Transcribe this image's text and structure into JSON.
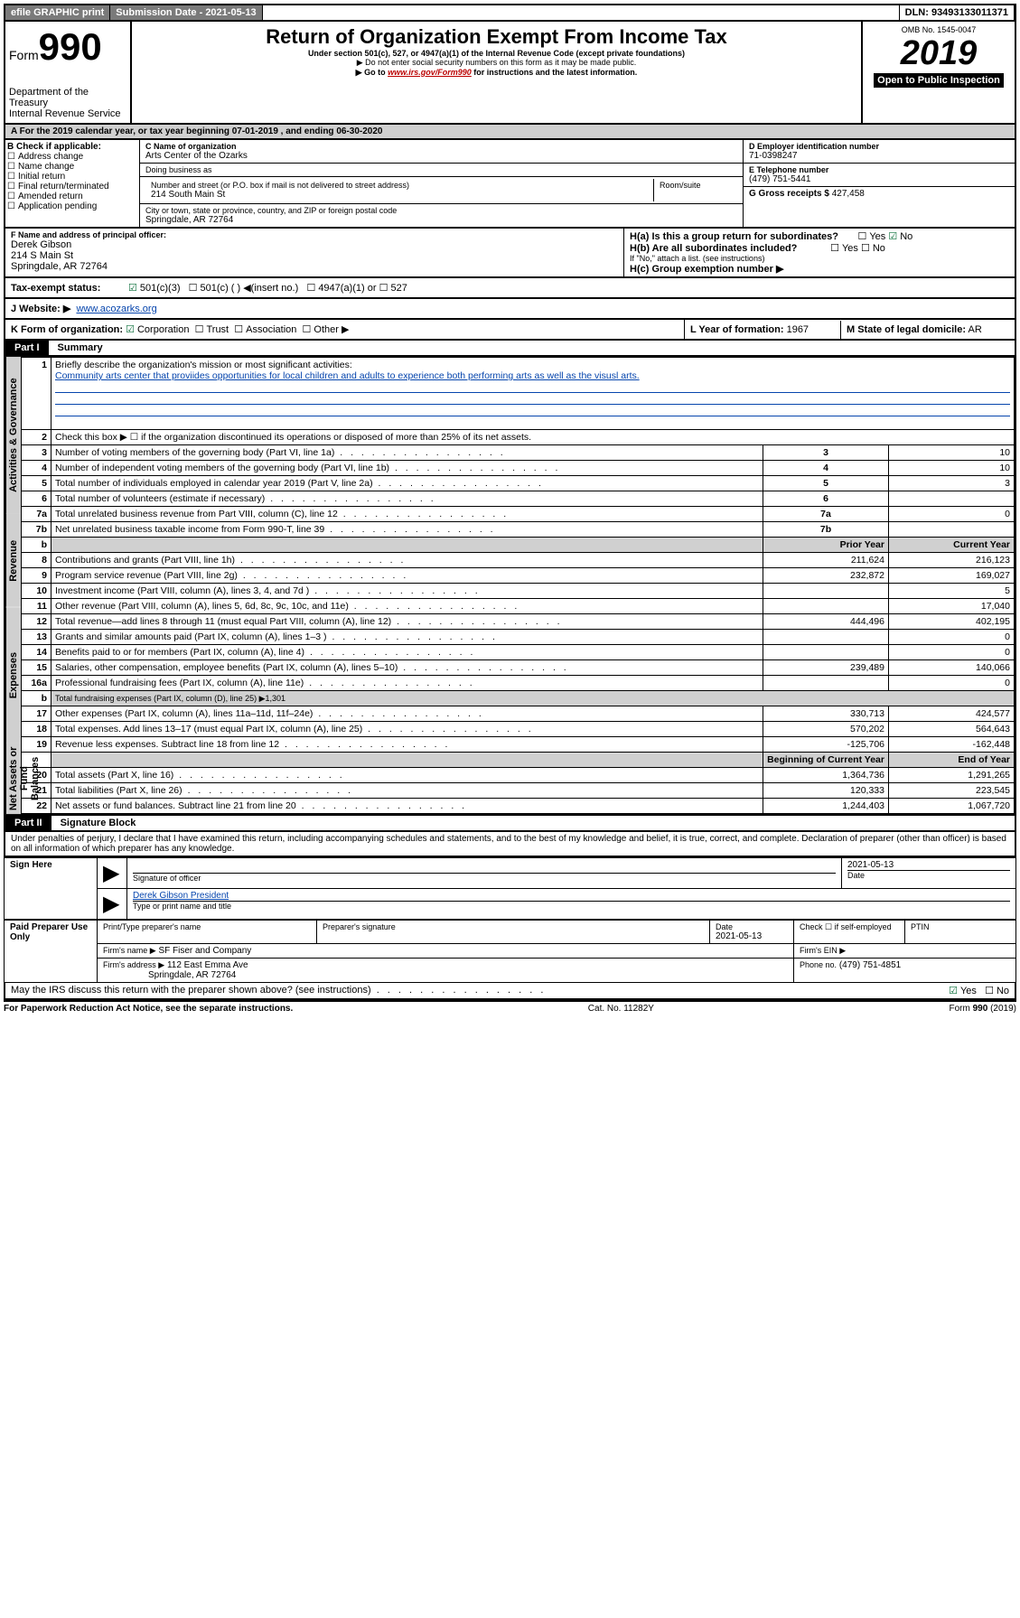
{
  "topbar": {
    "efile": "efile GRAPHIC print",
    "subdate_label": "Submission Date - 2021-05-13",
    "dln": "DLN: 93493133011371"
  },
  "header": {
    "form_label": "Form",
    "form_no": "990",
    "title": "Return of Organization Exempt From Income Tax",
    "sub1": "Under section 501(c), 527, or 4947(a)(1) of the Internal Revenue Code (except private foundations)",
    "sub2": "▶ Do not enter social security numbers on this form as it may be made public.",
    "sub3": "▶ Go to ",
    "sub3_link": "www.irs.gov/Form990",
    "sub3_tail": " for instructions and the latest information.",
    "dept": "Department of the Treasury",
    "irs": "Internal Revenue Service",
    "omb": "OMB No. 1545-0047",
    "year": "2019",
    "open": "Open to Public Inspection"
  },
  "rowA": "A For the 2019 calendar year, or tax year beginning 07-01-2019    , and ending 06-30-2020",
  "boxB": {
    "title": "B Check if applicable:",
    "items": [
      "Address change",
      "Name change",
      "Initial return",
      "Final return/terminated",
      "Amended return",
      "Application pending"
    ]
  },
  "boxC": {
    "label": "C Name of organization",
    "name": "Arts Center of the Ozarks",
    "dba": "Doing business as",
    "addr_label": "Number and street (or P.O. box if mail is not delivered to street address)",
    "addr": "214 South Main St",
    "room": "Room/suite",
    "city_label": "City or town, state or province, country, and ZIP or foreign postal code",
    "city": "Springdale, AR  72764"
  },
  "boxD": {
    "label": "D Employer identification number",
    "val": "71-0398247"
  },
  "boxE": {
    "label": "E Telephone number",
    "val": "(479) 751-5441"
  },
  "boxG": {
    "label": "G Gross receipts $",
    "val": "427,458"
  },
  "boxF": {
    "label": "F  Name and address of principal officer:",
    "name": "Derek Gibson",
    "addr1": "214 S Main St",
    "addr2": "Springdale, AR  72764"
  },
  "boxH": {
    "a": "H(a)  Is this a group return for subordinates?",
    "b": "H(b)  Are all subordinates included?",
    "note": "If \"No,\" attach a list. (see instructions)",
    "c": "H(c)  Group exemption number ▶",
    "yes": "Yes",
    "no": "No"
  },
  "boxI": {
    "label": "Tax-exempt status:",
    "c3": "501(c)(3)",
    "c": "501(c) (  ) ◀(insert no.)",
    "a1": "4947(a)(1) or",
    "527": "527"
  },
  "boxJ": {
    "label": "J   Website: ▶",
    "val": "www.acozarks.org"
  },
  "boxK": {
    "label": "K Form of organization:",
    "corp": "Corporation",
    "trust": "Trust",
    "assoc": "Association",
    "other": "Other ▶"
  },
  "boxL": {
    "label": "L Year of formation:",
    "val": "1967"
  },
  "boxM": {
    "label": "M State of legal domicile:",
    "val": "AR"
  },
  "part1": {
    "hdr": "Part I",
    "title": "Summary"
  },
  "summary": {
    "q1": "Briefly describe the organization's mission or most significant activities:",
    "q1_ans": "Community arts center that proviides opportunities for local children and adults to experience both performing arts as well as the visusl arts.",
    "q2": "Check this box ▶ ☐  if the organization discontinued its operations or disposed of more than 25% of its net assets.",
    "rows_ag": [
      {
        "n": "3",
        "t": "Number of voting members of the governing body (Part VI, line 1a)",
        "v": "10"
      },
      {
        "n": "4",
        "t": "Number of independent voting members of the governing body (Part VI, line 1b)",
        "v": "10"
      },
      {
        "n": "5",
        "t": "Total number of individuals employed in calendar year 2019 (Part V, line 2a)",
        "v": "3"
      },
      {
        "n": "6",
        "t": "Total number of volunteers (estimate if necessary)",
        "v": ""
      },
      {
        "n": "7a",
        "t": "Total unrelated business revenue from Part VIII, column (C), line 12",
        "v": "0"
      },
      {
        "n": "7b",
        "t": "Net unrelated business taxable income from Form 990-T, line 39",
        "v": ""
      }
    ],
    "col_prior": "Prior Year",
    "col_curr": "Current Year",
    "rev": [
      {
        "n": "8",
        "t": "Contributions and grants (Part VIII, line 1h)",
        "p": "211,624",
        "c": "216,123"
      },
      {
        "n": "9",
        "t": "Program service revenue (Part VIII, line 2g)",
        "p": "232,872",
        "c": "169,027"
      },
      {
        "n": "10",
        "t": "Investment income (Part VIII, column (A), lines 3, 4, and 7d )",
        "p": "",
        "c": "5"
      },
      {
        "n": "11",
        "t": "Other revenue (Part VIII, column (A), lines 5, 6d, 8c, 9c, 10c, and 11e)",
        "p": "",
        "c": "17,040"
      },
      {
        "n": "12",
        "t": "Total revenue—add lines 8 through 11 (must equal Part VIII, column (A), line 12)",
        "p": "444,496",
        "c": "402,195"
      }
    ],
    "exp": [
      {
        "n": "13",
        "t": "Grants and similar amounts paid (Part IX, column (A), lines 1–3 )",
        "p": "",
        "c": "0"
      },
      {
        "n": "14",
        "t": "Benefits paid to or for members (Part IX, column (A), line 4)",
        "p": "",
        "c": "0"
      },
      {
        "n": "15",
        "t": "Salaries, other compensation, employee benefits (Part IX, column (A), lines 5–10)",
        "p": "239,489",
        "c": "140,066"
      },
      {
        "n": "16a",
        "t": "Professional fundraising fees (Part IX, column (A), line 11e)",
        "p": "",
        "c": "0"
      },
      {
        "n": "b",
        "t": "Total fundraising expenses (Part IX, column (D), line 25) ▶1,301",
        "p": "—",
        "c": "—"
      },
      {
        "n": "17",
        "t": "Other expenses (Part IX, column (A), lines 11a–11d, 11f–24e)",
        "p": "330,713",
        "c": "424,577"
      },
      {
        "n": "18",
        "t": "Total expenses. Add lines 13–17 (must equal Part IX, column (A), line 25)",
        "p": "570,202",
        "c": "564,643"
      },
      {
        "n": "19",
        "t": "Revenue less expenses. Subtract line 18 from line 12",
        "p": "-125,706",
        "c": "-162,448"
      }
    ],
    "col_boy": "Beginning of Current Year",
    "col_eoy": "End of Year",
    "na": [
      {
        "n": "20",
        "t": "Total assets (Part X, line 16)",
        "p": "1,364,736",
        "c": "1,291,265"
      },
      {
        "n": "21",
        "t": "Total liabilities (Part X, line 26)",
        "p": "120,333",
        "c": "223,545"
      },
      {
        "n": "22",
        "t": "Net assets or fund balances. Subtract line 21 from line 20",
        "p": "1,244,403",
        "c": "1,067,720"
      }
    ],
    "vtabs": {
      "ag": "Activities & Governance",
      "rev": "Revenue",
      "exp": "Expenses",
      "na": "Net Assets or Fund Balances"
    }
  },
  "part2": {
    "hdr": "Part II",
    "title": "Signature Block"
  },
  "sig": {
    "perjury": "Under penalties of perjury, I declare that I have examined this return, including accompanying schedules and statements, and to the best of my knowledge and belief, it is true, correct, and complete. Declaration of preparer (other than officer) is based on all information of which preparer has any knowledge.",
    "sign_here": "Sign Here",
    "sig_officer": "Signature of officer",
    "date": "2021-05-13",
    "date_label": "Date",
    "name_title": "Derek Gibson President",
    "name_title_label": "Type or print name and title",
    "paid": "Paid Preparer Use Only",
    "prep_name_label": "Print/Type preparer's name",
    "prep_sig_label": "Preparer's signature",
    "prep_date": "2021-05-13",
    "check_self": "Check ☐ if self-employed",
    "ptin": "PTIN",
    "firm_name_label": "Firm's name   ▶",
    "firm_name": "SF Fiser and Company",
    "firm_ein": "Firm's EIN ▶",
    "firm_addr_label": "Firm's address ▶",
    "firm_addr1": "112 East Emma Ave",
    "firm_addr2": "Springdale, AR  72764",
    "phone_label": "Phone no.",
    "phone": "(479) 751-4851",
    "discuss": "May the IRS discuss this return with the preparer shown above? (see instructions)",
    "yes": "Yes",
    "no": "No"
  },
  "footer": {
    "pra": "For Paperwork Reduction Act Notice, see the separate instructions.",
    "cat": "Cat. No. 11282Y",
    "form": "Form 990 (2019)"
  }
}
